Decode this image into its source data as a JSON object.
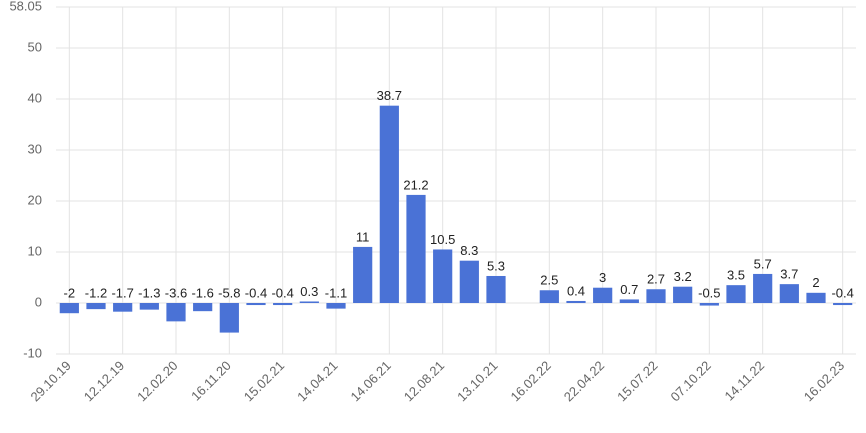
{
  "chart_data": {
    "type": "bar",
    "categories": [
      "29.10.19",
      null,
      "12.12.19",
      null,
      "12.02.20",
      null,
      "16.11.20",
      null,
      "15.02.21",
      null,
      "14.04.21",
      null,
      "14.06.21",
      null,
      "12.08.21",
      null,
      "13.10.21",
      null,
      "16.02.22",
      null,
      "22.04.22",
      null,
      "15.07.22",
      null,
      "07.10.22",
      null,
      "14.11.22",
      null,
      null,
      "16.02.23"
    ],
    "values": [
      -2,
      -1.2,
      -1.7,
      -1.3,
      -3.6,
      -1.6,
      -5.8,
      -0.4,
      -0.4,
      0.3,
      -1.1,
      11,
      38.7,
      21.2,
      10.5,
      8.3,
      5.3,
      null,
      2.5,
      0.4,
      3,
      0.7,
      2.7,
      3.2,
      -0.5,
      3.5,
      5.7,
      3.7,
      2,
      -0.4
    ],
    "color": "#4a72d6",
    "ylim": [
      -10,
      58.05
    ],
    "yticks": [
      -10,
      0,
      10,
      20,
      30,
      40,
      50,
      58.05
    ],
    "grid": true
  }
}
